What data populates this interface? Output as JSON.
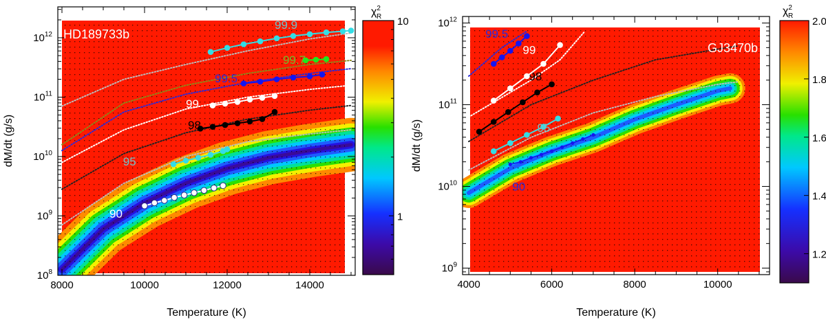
{
  "chart_data": [
    {
      "type": "heatmap",
      "panel": "left",
      "name": "HD189733b",
      "xlabel": "Temperature (K)",
      "ylabel": "dM/dt (g/s)",
      "xlim": [
        7900,
        15100
      ],
      "x_ticks": [
        8000,
        10000,
        12000,
        14000
      ],
      "x_tick_labels": [
        "8000",
        "10000",
        "12000",
        "14000"
      ],
      "ylim": [
        8.0,
        12.52
      ],
      "y_scale": "log",
      "y_ticks": [
        8,
        9,
        10,
        11,
        12
      ],
      "colorbar": {
        "label": "χ",
        "label_sup": "2",
        "label_sub": "R",
        "scale": "log",
        "range": [
          0.5,
          10
        ],
        "ticks": [
          1,
          10
        ],
        "tick_labels": [
          "1",
          "10"
        ],
        "colormap": "rainbow (purple-blue-cyan-green-yellow-red)"
      },
      "minimum_valley": [
        [
          8000,
          8.1
        ],
        [
          9000,
          8.78
        ],
        [
          10000,
          9.22
        ],
        [
          11000,
          9.55
        ],
        [
          12000,
          9.8
        ],
        [
          13000,
          9.98
        ],
        [
          14000,
          10.1
        ],
        [
          15000,
          10.2
        ]
      ],
      "series": [
        {
          "name": "90",
          "label_pos": [
            9150,
            8.97
          ],
          "color": "#ffffff",
          "marker_fill": "#ffffff",
          "hollow": true,
          "points": [
            [
              10000,
              9.17
            ],
            [
              10240,
              9.22
            ],
            [
              10480,
              9.26
            ],
            [
              10720,
              9.31
            ],
            [
              10960,
              9.35
            ],
            [
              11200,
              9.39
            ],
            [
              11440,
              9.43
            ],
            [
              11680,
              9.47
            ],
            [
              11900,
              9.51
            ]
          ]
        },
        {
          "name": "95",
          "label_pos": [
            9480,
            9.85
          ],
          "color": "#6fc4cc",
          "marker_fill": "#33dde6",
          "points": [
            [
              10700,
              9.87
            ],
            [
              11000,
              9.93
            ],
            [
              11300,
              9.98
            ],
            [
              11600,
              10.03
            ],
            [
              11900,
              10.09
            ],
            [
              12000,
              10.12
            ]
          ]
        },
        {
          "name": "98",
          "label_pos": [
            11050,
            10.46
          ],
          "color": "#000000",
          "marker_fill": "#000000",
          "points": [
            [
              11350,
              10.47
            ],
            [
              11650,
              10.5
            ],
            [
              11950,
              10.53
            ],
            [
              12250,
              10.56
            ],
            [
              12550,
              10.59
            ],
            [
              12850,
              10.63
            ],
            [
              13150,
              10.75
            ]
          ]
        },
        {
          "name": "99",
          "label_pos": [
            11000,
            10.82
          ],
          "color": "#ffffff",
          "marker_fill": "#ffffff",
          "points": [
            [
              11650,
              10.86
            ],
            [
              11950,
              10.89
            ],
            [
              12250,
              10.92
            ],
            [
              12550,
              10.96
            ],
            [
              12850,
              10.99
            ],
            [
              13150,
              11.02
            ]
          ]
        },
        {
          "name": "99.5",
          "label_pos": [
            11700,
            11.25
          ],
          "color": "#2a2ad8",
          "marker_fill": "#1515f0",
          "points": [
            [
              12400,
              11.23
            ],
            [
              12800,
              11.26
            ],
            [
              13200,
              11.3
            ],
            [
              13600,
              11.33
            ],
            [
              14000,
              11.35
            ],
            [
              14300,
              11.38
            ]
          ]
        },
        {
          "name": "99.7",
          "label_pos": [
            13350,
            11.56
          ],
          "color": "#6fbe2a",
          "marker_fill": "#1ee81e",
          "points": [
            [
              13900,
              11.62
            ],
            [
              14150,
              11.63
            ],
            [
              14400,
              11.64
            ]
          ]
        },
        {
          "name": "99.9",
          "label_pos": [
            13150,
            12.15
          ],
          "color": "#6fc4cc",
          "marker_fill": "#33dde6",
          "points": [
            [
              11600,
              11.76
            ],
            [
              12000,
              11.83
            ],
            [
              12400,
              11.89
            ],
            [
              12800,
              11.94
            ],
            [
              13200,
              11.99
            ],
            [
              13600,
              12.03
            ],
            [
              14000,
              12.06
            ],
            [
              14400,
              12.09
            ],
            [
              14800,
              12.11
            ],
            [
              15000,
              12.12
            ]
          ]
        }
      ],
      "dotted_contours": [
        {
          "color": "#bbbbbb",
          "points": [
            [
              8000,
              8.85
            ],
            [
              9500,
              9.55
            ],
            [
              11000,
              10.0
            ],
            [
              12500,
              10.25
            ],
            [
              14000,
              10.38
            ],
            [
              15000,
              10.45
            ]
          ]
        },
        {
          "color": "#222222",
          "points": [
            [
              8000,
              9.45
            ],
            [
              9500,
              10.05
            ],
            [
              11000,
              10.4
            ],
            [
              12500,
              10.63
            ],
            [
              14000,
              10.78
            ],
            [
              15000,
              10.86
            ]
          ]
        },
        {
          "color": "#ffffff",
          "points": [
            [
              8000,
              9.9
            ],
            [
              9500,
              10.45
            ],
            [
              11000,
              10.8
            ],
            [
              12500,
              11.0
            ],
            [
              14000,
              11.13
            ],
            [
              15000,
              11.2
            ]
          ]
        },
        {
          "color": "#2a2ad8",
          "points": [
            [
              8000,
              10.1
            ],
            [
              9500,
              10.75
            ],
            [
              11000,
              11.05
            ],
            [
              12500,
              11.25
            ],
            [
              14000,
              11.4
            ],
            [
              15000,
              11.48
            ]
          ]
        },
        {
          "color": "#8a8a1a",
          "points": [
            [
              8000,
              10.2
            ],
            [
              9500,
              10.9
            ],
            [
              11000,
              11.2
            ],
            [
              12500,
              11.4
            ],
            [
              14000,
              11.55
            ],
            [
              15000,
              11.62
            ]
          ]
        },
        {
          "color": "#bbbbbb",
          "points": [
            [
              8000,
              10.85
            ],
            [
              9500,
              11.3
            ],
            [
              11000,
              11.55
            ],
            [
              12500,
              11.78
            ],
            [
              14000,
              11.98
            ],
            [
              15000,
              12.08
            ]
          ]
        }
      ]
    },
    {
      "type": "heatmap",
      "panel": "right",
      "name": "GJ3470b",
      "xlabel": "Temperature (K)",
      "ylabel": "dM/dt (g/s)",
      "xlim": [
        3850,
        11250
      ],
      "x_ticks": [
        4000,
        6000,
        8000,
        10000
      ],
      "x_tick_labels": [
        "4000",
        "6000",
        "8000",
        "10000"
      ],
      "ylim": [
        8.92,
        12.08
      ],
      "y_scale": "log",
      "y_ticks": [
        9,
        10,
        11,
        12
      ],
      "colorbar": {
        "label": "χ",
        "label_sup": "2",
        "label_sub": "R",
        "scale": "linear",
        "range": [
          1.1,
          2.0
        ],
        "ticks": [
          1.2,
          1.4,
          1.6,
          1.8,
          2.0
        ],
        "tick_labels": [
          "1.2",
          "1.4",
          "1.6",
          "1.8",
          "2.0"
        ],
        "colormap": "rainbow (purple-blue-cyan-green-yellow-red)"
      },
      "minimum_valley": [
        [
          4000,
          9.92
        ],
        [
          5000,
          10.22
        ],
        [
          6000,
          10.43
        ],
        [
          7000,
          10.6
        ],
        [
          8000,
          10.82
        ],
        [
          9000,
          11.0
        ],
        [
          10000,
          11.17
        ],
        [
          10300,
          11.2
        ]
      ],
      "series": [
        {
          "name": "90",
          "label_pos": [
            5050,
            9.95
          ],
          "color": "#2a2ad8",
          "marker_fill": "#1515f0",
          "small": true,
          "points": [
            [
              5000,
              10.27
            ],
            [
              5250,
              10.3
            ],
            [
              5500,
              10.35
            ],
            [
              5750,
              10.39
            ],
            [
              6000,
              10.43
            ],
            [
              6250,
              10.48
            ],
            [
              6500,
              10.53
            ],
            [
              6750,
              10.58
            ],
            [
              7000,
              10.63
            ]
          ]
        },
        {
          "name": "95",
          "label_pos": [
            5650,
            10.67
          ],
          "color": "#6fc4cc",
          "marker_fill": "#33dde6",
          "points": [
            [
              4600,
              10.43
            ],
            [
              5000,
              10.53
            ],
            [
              5400,
              10.63
            ],
            [
              5800,
              10.73
            ],
            [
              6150,
              10.83
            ]
          ]
        },
        {
          "name": "98",
          "label_pos": [
            5450,
            11.3
          ],
          "color": "#000000",
          "marker_fill": "#000000",
          "points": [
            [
              4250,
              10.67
            ],
            [
              4600,
              10.79
            ],
            [
              4950,
              10.91
            ],
            [
              5300,
              11.03
            ],
            [
              5650,
              11.15
            ],
            [
              6000,
              11.25
            ]
          ]
        },
        {
          "name": "99",
          "label_pos": [
            5300,
            11.62
          ],
          "color": "#ffffff",
          "marker_fill": "#ffffff",
          "points": [
            [
              4600,
              11.05
            ],
            [
              5000,
              11.2
            ],
            [
              5400,
              11.35
            ],
            [
              5800,
              11.5
            ],
            [
              6200,
              11.73
            ]
          ]
        },
        {
          "name": "99.5",
          "label_pos": [
            4400,
            11.82
          ],
          "color": "#2a2ad8",
          "marker_fill": "#1515f0",
          "points": [
            [
              4600,
              11.5
            ],
            [
              4800,
              11.58
            ],
            [
              5000,
              11.66
            ],
            [
              5200,
              11.75
            ],
            [
              5400,
              11.84
            ]
          ]
        }
      ],
      "dotted_contours": [
        {
          "color": "#bbbbbb",
          "points": [
            [
              4000,
              10.2
            ],
            [
              5500,
              10.6
            ],
            [
              7000,
              10.9
            ],
            [
              8500,
              11.1
            ],
            [
              10000,
              11.25
            ],
            [
              10500,
              11.28
            ]
          ]
        },
        {
          "color": "#222222",
          "points": [
            [
              4000,
              10.55
            ],
            [
              5500,
              11.0
            ],
            [
              7000,
              11.3
            ],
            [
              8500,
              11.55
            ],
            [
              10000,
              11.68
            ],
            [
              10500,
              11.72
            ]
          ]
        },
        {
          "color": "#ffffff",
          "points": [
            [
              4000,
              10.85
            ],
            [
              5500,
              11.3
            ],
            [
              6200,
              11.55
            ],
            [
              6800,
              11.9
            ]
          ]
        },
        {
          "color": "#2a2ad8",
          "points": [
            [
              4000,
              11.35
            ],
            [
              4800,
              11.7
            ],
            [
              5400,
              11.9
            ]
          ]
        }
      ]
    }
  ]
}
